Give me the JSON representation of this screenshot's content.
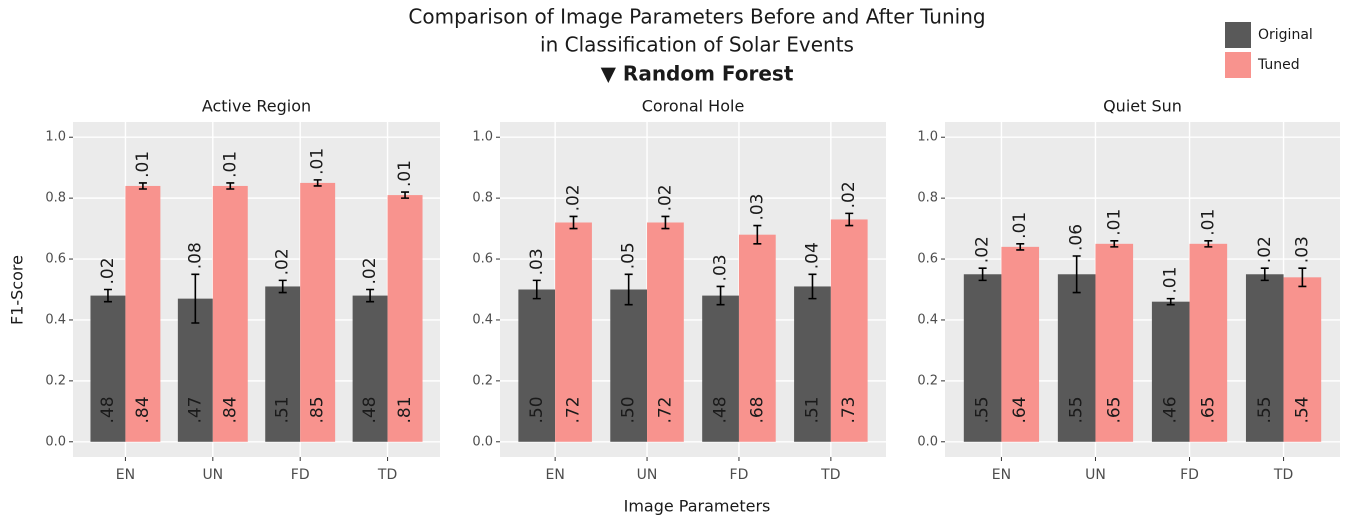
{
  "title": [
    "Comparison of Image Parameters Before and After Tuning",
    "in Classification of Solar Events"
  ],
  "subtitle": "▼ Random Forest",
  "xlabel": "Image Parameters",
  "ylabel": "F1-Score",
  "legend": "top-right",
  "chart_data": [
    {
      "type": "bar",
      "title": "Active Region",
      "categories": [
        "EN",
        "UN",
        "FD",
        "TD"
      ],
      "ylim": [
        -0.05,
        1.05
      ],
      "yticks": [
        {
          "value": 0,
          "label": "0.0"
        },
        0.2,
        0.4,
        0.6,
        0.8,
        {
          "value": 1,
          "label": "1.0"
        }
      ],
      "grid": true,
      "series": [
        {
          "name": "Original",
          "color": "#595959",
          "values": [
            0.48,
            0.47,
            0.51,
            0.48
          ],
          "value_labels": [
            ".48",
            ".47",
            ".51",
            ".48"
          ],
          "errors": [
            0.02,
            0.08,
            0.02,
            0.02
          ],
          "error_labels": [
            ".02",
            ".08",
            ".02",
            ".02"
          ]
        },
        {
          "name": "Tuned",
          "color": "#f8938e",
          "values": [
            0.84,
            0.84,
            0.85,
            0.81
          ],
          "value_labels": [
            ".84",
            ".84",
            ".85",
            ".81"
          ],
          "errors": [
            0.01,
            0.01,
            0.01,
            0.01
          ],
          "error_labels": [
            ".01",
            ".01",
            ".01",
            ".01"
          ]
        }
      ]
    },
    {
      "type": "bar",
      "title": "Coronal Hole",
      "categories": [
        "EN",
        "UN",
        "FD",
        "TD"
      ],
      "ylim": [
        -0.05,
        1.05
      ],
      "yticks": [
        {
          "value": 0,
          "label": "0.0"
        },
        0.2,
        0.4,
        0.6,
        0.8,
        {
          "value": 1,
          "label": "1.0"
        }
      ],
      "grid": true,
      "series": [
        {
          "name": "Original",
          "color": "#595959",
          "values": [
            0.5,
            0.5,
            0.48,
            0.51
          ],
          "value_labels": [
            ".50",
            ".50",
            ".48",
            ".51"
          ],
          "errors": [
            0.03,
            0.05,
            0.03,
            0.04
          ],
          "error_labels": [
            ".03",
            ".05",
            ".03",
            ".04"
          ]
        },
        {
          "name": "Tuned",
          "color": "#f8938e",
          "values": [
            0.72,
            0.72,
            0.68,
            0.73
          ],
          "value_labels": [
            ".72",
            ".72",
            ".68",
            ".73"
          ],
          "errors": [
            0.02,
            0.02,
            0.03,
            0.02
          ],
          "error_labels": [
            ".02",
            ".02",
            ".03",
            ".02"
          ]
        }
      ]
    },
    {
      "type": "bar",
      "title": "Quiet Sun",
      "categories": [
        "EN",
        "UN",
        "FD",
        "TD"
      ],
      "ylim": [
        -0.05,
        1.05
      ],
      "yticks": [
        {
          "value": 0,
          "label": "0.0"
        },
        0.2,
        0.4,
        0.6,
        0.8,
        {
          "value": 1,
          "label": "1.0"
        }
      ],
      "grid": true,
      "series": [
        {
          "name": "Original",
          "color": "#595959",
          "values": [
            0.55,
            0.55,
            0.46,
            0.55
          ],
          "value_labels": [
            ".55",
            ".55",
            ".46",
            ".55"
          ],
          "errors": [
            0.02,
            0.06,
            0.01,
            0.02
          ],
          "error_labels": [
            ".02",
            ".06",
            ".01",
            ".02"
          ]
        },
        {
          "name": "Tuned",
          "color": "#f8938e",
          "values": [
            0.64,
            0.65,
            0.65,
            0.54
          ],
          "value_labels": [
            ".64",
            ".65",
            ".65",
            ".54"
          ],
          "errors": [
            0.01,
            0.01,
            0.01,
            0.03
          ],
          "error_labels": [
            ".01",
            ".01",
            ".01",
            ".03"
          ]
        }
      ]
    }
  ]
}
